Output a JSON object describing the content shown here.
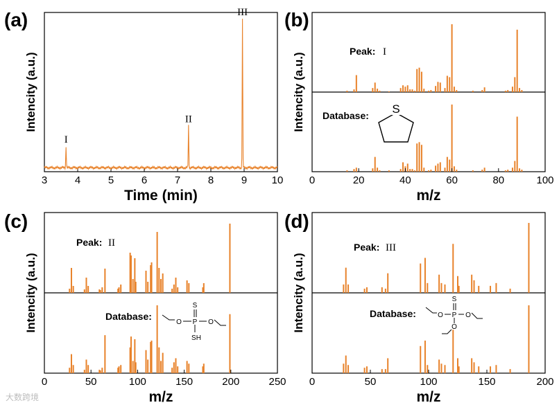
{
  "watermark": "大数跨境",
  "colors": {
    "trace": "#e8822a",
    "axis": "#000000"
  },
  "chart_data": [
    {
      "id": "a",
      "type": "line",
      "panel_label": "(a)",
      "xlabel": "Time (min)",
      "ylabel": "Intencity (a.u.)",
      "xlim": [
        3,
        10
      ],
      "ylim": [
        0,
        100
      ],
      "xticks": [
        "3",
        "4",
        "5",
        "6",
        "7",
        "8",
        "9",
        "10"
      ],
      "baseline": 2.5,
      "peaks": [
        {
          "label": "I",
          "x": 3.65,
          "y": 16
        },
        {
          "label": "II",
          "x": 7.33,
          "y": 29
        },
        {
          "label": "III",
          "x": 8.95,
          "y": 96
        }
      ]
    },
    {
      "id": "b",
      "type": "bar",
      "panel_label": "(b)",
      "xlabel": "m/z",
      "ylabel": "Intencity (a.u.)",
      "xlim": [
        0,
        100
      ],
      "xticks": [
        "0",
        "20",
        "40",
        "60",
        "80",
        "100"
      ],
      "top_label": "Peak:",
      "top_numeral": "I",
      "bottom_label": "Database:",
      "structure": "tetrahydrothiophene",
      "structure_atoms": [
        "S"
      ],
      "series": [
        {
          "name": "Peak",
          "x": [
            15,
            18,
            19,
            26,
            27,
            28,
            29,
            33,
            38,
            39,
            40,
            41,
            42,
            43,
            44,
            45,
            46,
            47,
            48,
            50,
            51,
            53,
            54,
            55,
            57,
            58,
            59,
            60,
            61,
            62,
            69,
            73,
            74,
            83,
            84,
            86,
            87,
            88,
            89,
            90
          ],
          "y": [
            2,
            4,
            25,
            6,
            14,
            5,
            2,
            1,
            6,
            10,
            8,
            10,
            4,
            4,
            2,
            34,
            36,
            30,
            5,
            2,
            3,
            9,
            15,
            14,
            6,
            24,
            22,
            100,
            8,
            3,
            2,
            3,
            7,
            2,
            3,
            8,
            22,
            92,
            6,
            3
          ]
        },
        {
          "name": "Database",
          "x": [
            15,
            18,
            19,
            26,
            27,
            28,
            29,
            33,
            38,
            39,
            40,
            41,
            42,
            43,
            44,
            45,
            46,
            47,
            48,
            50,
            51,
            53,
            54,
            55,
            57,
            58,
            59,
            60,
            61,
            62,
            69,
            73,
            74,
            83,
            84,
            86,
            87,
            88,
            89,
            90
          ],
          "y": [
            2,
            4,
            6,
            5,
            22,
            6,
            2,
            2,
            4,
            14,
            8,
            12,
            4,
            4,
            2,
            42,
            44,
            40,
            6,
            2,
            3,
            9,
            12,
            14,
            6,
            22,
            18,
            100,
            8,
            3,
            2,
            3,
            6,
            2,
            3,
            6,
            16,
            82,
            5,
            3
          ]
        }
      ]
    },
    {
      "id": "c",
      "type": "bar",
      "panel_label": "(c)",
      "xlabel": "m/z",
      "ylabel": "Intencity (a.u.)",
      "xlim": [
        0,
        250
      ],
      "xticks": [
        "0",
        "50",
        "100",
        "150",
        "200",
        "250"
      ],
      "top_label": "Peak:",
      "top_numeral": "II",
      "bottom_label": "Database:",
      "structure": "O,O-diethyl phosphorodithioate",
      "structure_atoms": [
        "S",
        "P",
        "O",
        "O",
        "SH"
      ],
      "series": [
        {
          "name": "Peak",
          "x": [
            27,
            29,
            31,
            43,
            45,
            47,
            59,
            60,
            62,
            65,
            79,
            80,
            82,
            92,
            93,
            95,
            97,
            98,
            109,
            111,
            114,
            115,
            121,
            123,
            125,
            127,
            137,
            139,
            141,
            143,
            153,
            155,
            170,
            171,
            199
          ],
          "y": [
            6,
            36,
            10,
            5,
            22,
            10,
            5,
            4,
            8,
            35,
            6,
            8,
            12,
            58,
            54,
            20,
            50,
            16,
            32,
            16,
            40,
            44,
            88,
            36,
            20,
            28,
            6,
            12,
            22,
            8,
            18,
            14,
            8,
            14,
            100
          ]
        },
        {
          "name": "Database",
          "x": [
            27,
            29,
            31,
            43,
            45,
            47,
            59,
            60,
            62,
            65,
            79,
            80,
            82,
            92,
            93,
            95,
            97,
            98,
            109,
            111,
            114,
            115,
            121,
            123,
            125,
            127,
            137,
            139,
            141,
            143,
            153,
            155,
            170,
            171,
            199
          ],
          "y": [
            8,
            28,
            12,
            5,
            20,
            12,
            5,
            4,
            8,
            56,
            8,
            10,
            12,
            38,
            54,
            18,
            50,
            16,
            34,
            20,
            46,
            48,
            100,
            38,
            18,
            30,
            8,
            16,
            22,
            10,
            18,
            14,
            10,
            14,
            87
          ]
        }
      ]
    },
    {
      "id": "d",
      "type": "bar",
      "panel_label": "(d)",
      "xlabel": "m/z",
      "ylabel": "Intencity (a.u.)",
      "xlim": [
        0,
        200
      ],
      "xticks": [
        "0",
        "50",
        "100",
        "150",
        "200"
      ],
      "top_label": "Peak:",
      "top_numeral": "III",
      "bottom_label": "Database:",
      "structure": "O,O,O-triethyl phosphorothioate",
      "structure_atoms": [
        "S",
        "O",
        "P",
        "O",
        "O"
      ],
      "series": [
        {
          "name": "Peak",
          "x": [
            27,
            29,
            31,
            45,
            47,
            60,
            63,
            65,
            93,
            97,
            99,
            109,
            111,
            114,
            121,
            125,
            126,
            137,
            139,
            143,
            153,
            158,
            170,
            186
          ],
          "y": [
            12,
            36,
            12,
            6,
            8,
            8,
            6,
            28,
            42,
            50,
            14,
            26,
            14,
            12,
            70,
            24,
            10,
            26,
            18,
            10,
            10,
            14,
            6,
            100
          ]
        },
        {
          "name": "Database",
          "x": [
            27,
            29,
            31,
            45,
            47,
            60,
            63,
            65,
            93,
            97,
            99,
            109,
            111,
            114,
            121,
            125,
            126,
            137,
            139,
            143,
            153,
            158,
            170,
            186
          ],
          "y": [
            14,
            26,
            12,
            8,
            10,
            6,
            6,
            22,
            40,
            48,
            12,
            20,
            14,
            12,
            64,
            22,
            10,
            22,
            16,
            10,
            10,
            12,
            6,
            100
          ]
        }
      ]
    }
  ]
}
